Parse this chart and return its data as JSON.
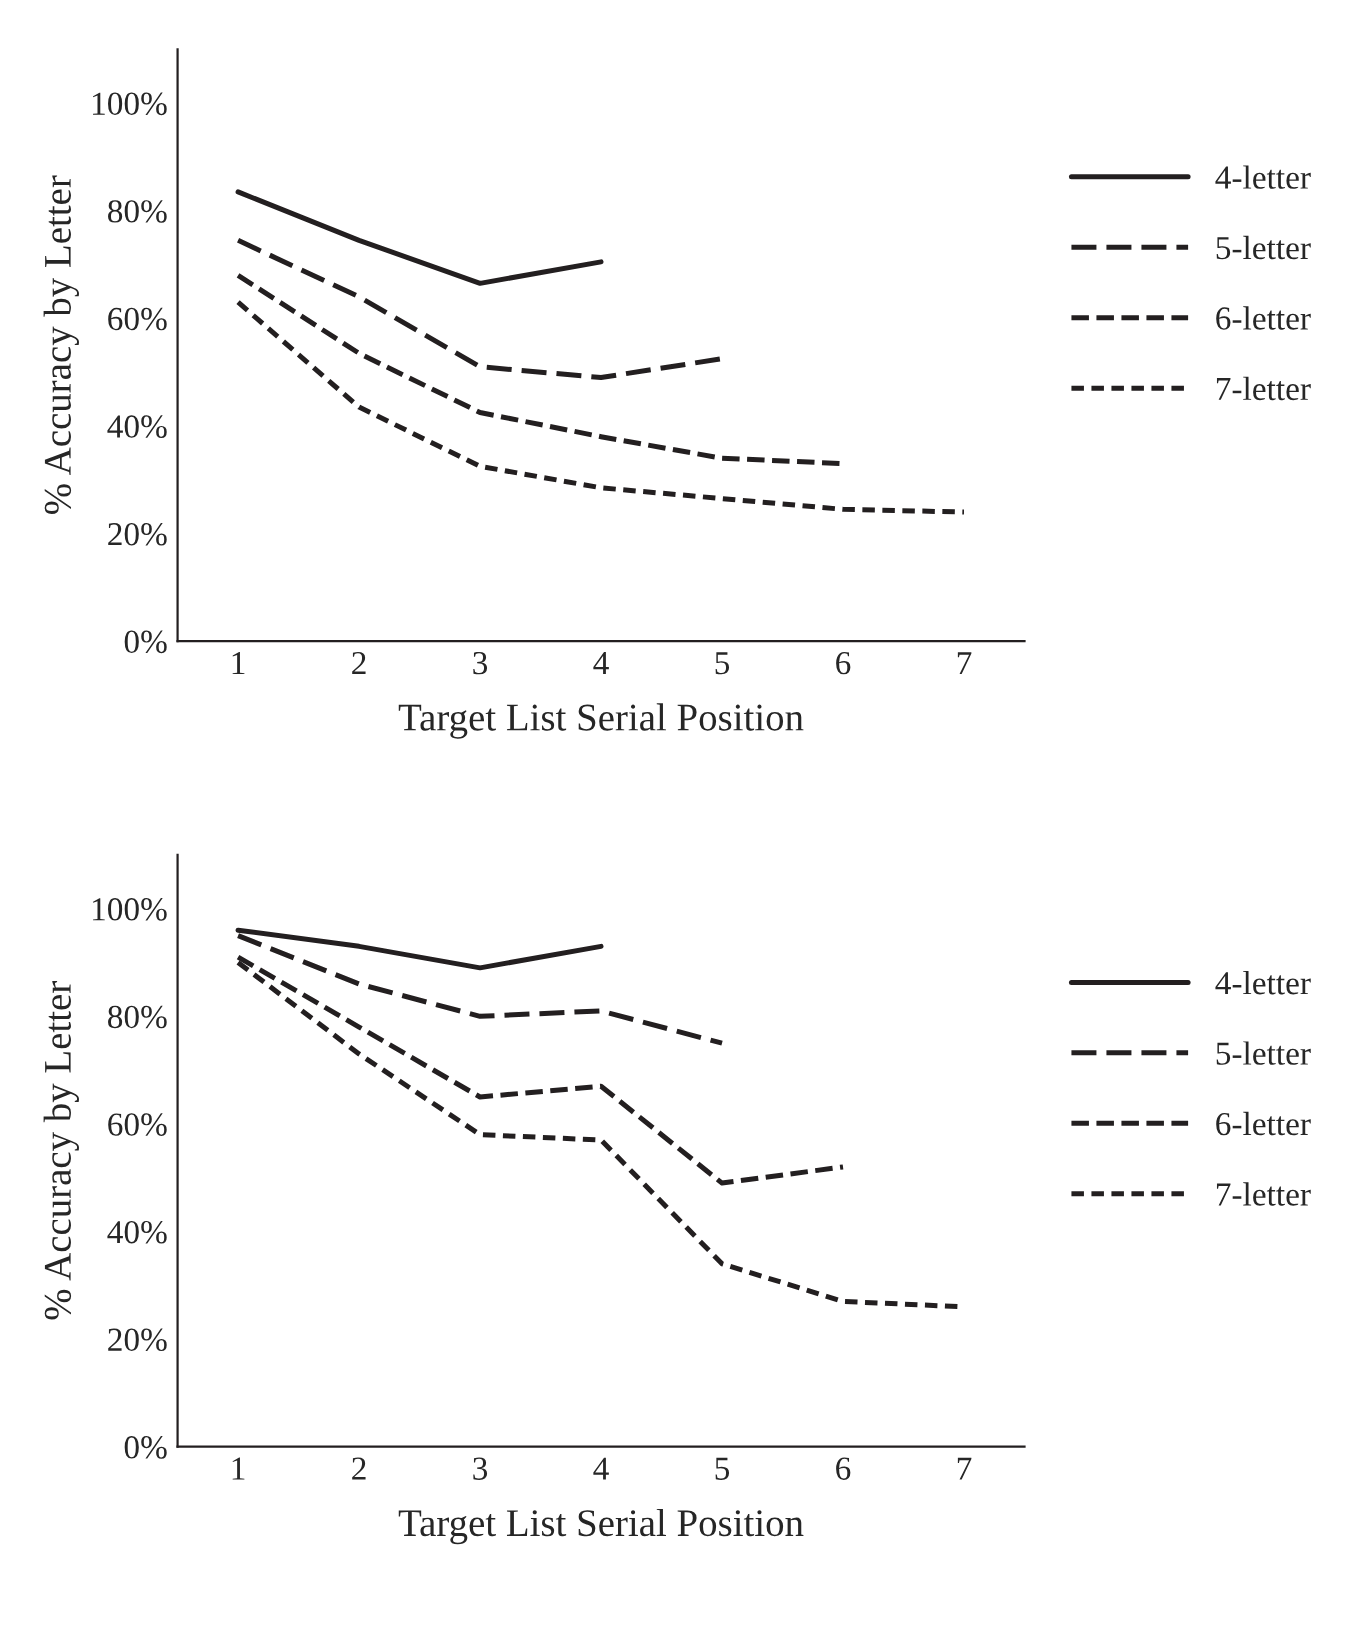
{
  "chart_data": [
    {
      "type": "line",
      "xlabel": "Target List Serial Position",
      "ylabel": "% Accuracy by Letter",
      "categories": [
        "1",
        "2",
        "3",
        "4",
        "5",
        "6",
        "7"
      ],
      "ylim": [
        0,
        110
      ],
      "yticks": [
        {
          "value": 0,
          "label": "0%"
        },
        {
          "value": 20,
          "label": "20%"
        },
        {
          "value": 40,
          "label": "40%"
        },
        {
          "value": 60,
          "label": "60%"
        },
        {
          "value": 80,
          "label": "80%"
        },
        {
          "value": 100,
          "label": "100%"
        }
      ],
      "legend": "right",
      "grid": false,
      "series": [
        {
          "name": "4-letter",
          "color": "#231f20",
          "line_style": "solid",
          "values": [
            83.5,
            74.5,
            66.5,
            70.5,
            null,
            null,
            null
          ]
        },
        {
          "name": "5-letter",
          "color": "#231f20",
          "line_style": "dashed",
          "values": [
            74.5,
            64,
            51,
            49,
            52.5,
            null,
            null
          ]
        },
        {
          "name": "6-letter",
          "color": "#231f20",
          "line_style": "dashed",
          "values": [
            68,
            53.5,
            42.5,
            38,
            34,
            33,
            null
          ]
        },
        {
          "name": "7-letter",
          "color": "#231f20",
          "line_style": "dotted",
          "values": [
            63,
            43.5,
            32.5,
            28.5,
            26.5,
            24.5,
            24
          ]
        }
      ]
    },
    {
      "type": "line",
      "xlabel": "Target List Serial Position",
      "ylabel": "% Accuracy by Letter",
      "categories": [
        "1",
        "2",
        "3",
        "4",
        "5",
        "6",
        "7"
      ],
      "ylim": [
        0,
        110
      ],
      "yticks": [
        {
          "value": 0,
          "label": "0%"
        },
        {
          "value": 20,
          "label": "20%"
        },
        {
          "value": 40,
          "label": "40%"
        },
        {
          "value": 60,
          "label": "60%"
        },
        {
          "value": 80,
          "label": "80%"
        },
        {
          "value": 100,
          "label": "100%"
        }
      ],
      "legend": "right",
      "grid": false,
      "series": [
        {
          "name": "4-letter",
          "color": "#231f20",
          "line_style": "solid",
          "values": [
            96,
            93,
            89,
            93,
            null,
            null,
            null
          ]
        },
        {
          "name": "5-letter",
          "color": "#231f20",
          "line_style": "dashed",
          "values": [
            95,
            86,
            80,
            81,
            75,
            null,
            null
          ]
        },
        {
          "name": "6-letter",
          "color": "#231f20",
          "line_style": "dashed",
          "values": [
            91,
            78,
            65,
            67,
            49,
            52,
            null
          ]
        },
        {
          "name": "7-letter",
          "color": "#231f20",
          "line_style": "dotted",
          "values": [
            90,
            73,
            58,
            57,
            34,
            27,
            26
          ]
        }
      ]
    }
  ]
}
